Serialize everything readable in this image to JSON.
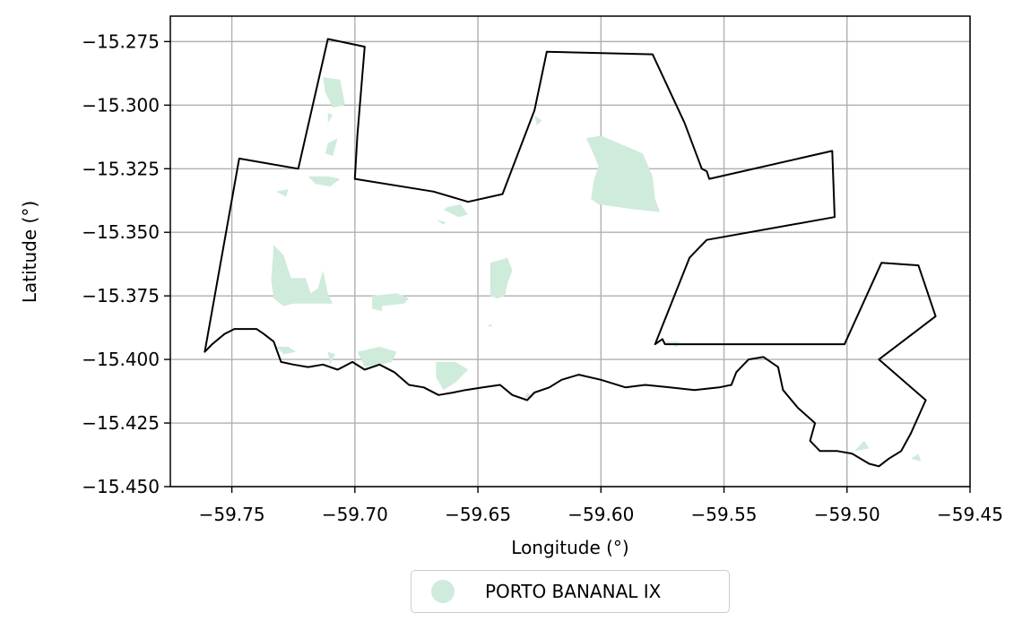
{
  "chart_data": {
    "type": "map",
    "xlabel": "Longitude (°)",
    "ylabel": "Latitude (°)",
    "xlim": [
      -59.775,
      -59.45
    ],
    "ylim": [
      -15.45,
      -15.265
    ],
    "x_ticks": [
      -59.75,
      -59.7,
      -59.65,
      -59.6,
      -59.55,
      -59.5,
      -59.45
    ],
    "x_tick_labels": [
      "−59.75",
      "−59.70",
      "−59.65",
      "−59.60",
      "−59.55",
      "−59.50",
      "−59.45"
    ],
    "y_ticks": [
      -15.275,
      -15.3,
      -15.325,
      -15.35,
      -15.375,
      -15.4,
      -15.425,
      -15.45
    ],
    "y_tick_labels": [
      "−15.275",
      "−15.300",
      "−15.325",
      "−15.350",
      "−15.375",
      "−15.400",
      "−15.425",
      "−15.450"
    ],
    "grid": true,
    "legend_placement": "bottom-center, below axes",
    "legend": [
      {
        "label": "PORTO BANANAL IX",
        "color": "#cfebdc",
        "marker": "circle"
      }
    ],
    "boundary": {
      "stroke": "#000000",
      "fill": "none",
      "points": [
        [
          -59.761,
          -15.397
        ],
        [
          -59.747,
          -15.321
        ],
        [
          -59.735,
          -15.323
        ],
        [
          -59.723,
          -15.325
        ],
        [
          -59.711,
          -15.274
        ],
        [
          -59.696,
          -15.277
        ],
        [
          -59.699,
          -15.312
        ],
        [
          -59.7,
          -15.329
        ],
        [
          -59.668,
          -15.334
        ],
        [
          -59.654,
          -15.338
        ],
        [
          -59.64,
          -15.335
        ],
        [
          -59.627,
          -15.302
        ],
        [
          -59.622,
          -15.279
        ],
        [
          -59.579,
          -15.28
        ],
        [
          -59.566,
          -15.307
        ],
        [
          -59.559,
          -15.325
        ],
        [
          -59.557,
          -15.326
        ],
        [
          -59.556,
          -15.329
        ],
        [
          -59.506,
          -15.318
        ],
        [
          -59.505,
          -15.344
        ],
        [
          -59.557,
          -15.353
        ],
        [
          -59.564,
          -15.36
        ],
        [
          -59.578,
          -15.394
        ],
        [
          -59.575,
          -15.392
        ],
        [
          -59.574,
          -15.394
        ],
        [
          -59.501,
          -15.394
        ],
        [
          -59.486,
          -15.362
        ],
        [
          -59.471,
          -15.363
        ],
        [
          -59.464,
          -15.383
        ],
        [
          -59.487,
          -15.4
        ],
        [
          -59.468,
          -15.416
        ],
        [
          -59.474,
          -15.429
        ],
        [
          -59.478,
          -15.436
        ],
        [
          -59.483,
          -15.439
        ],
        [
          -59.487,
          -15.442
        ],
        [
          -59.491,
          -15.441
        ],
        [
          -59.498,
          -15.437
        ],
        [
          -59.504,
          -15.436
        ],
        [
          -59.511,
          -15.436
        ],
        [
          -59.515,
          -15.432
        ],
        [
          -59.513,
          -15.425
        ],
        [
          -59.52,
          -15.419
        ],
        [
          -59.526,
          -15.412
        ],
        [
          -59.528,
          -15.403
        ],
        [
          -59.534,
          -15.399
        ],
        [
          -59.54,
          -15.4
        ],
        [
          -59.545,
          -15.405
        ],
        [
          -59.547,
          -15.41
        ],
        [
          -59.552,
          -15.411
        ],
        [
          -59.562,
          -15.412
        ],
        [
          -59.572,
          -15.411
        ],
        [
          -59.582,
          -15.41
        ],
        [
          -59.59,
          -15.411
        ],
        [
          -59.6,
          -15.408
        ],
        [
          -59.609,
          -15.406
        ],
        [
          -59.616,
          -15.408
        ],
        [
          -59.621,
          -15.411
        ],
        [
          -59.627,
          -15.413
        ],
        [
          -59.63,
          -15.416
        ],
        [
          -59.636,
          -15.414
        ],
        [
          -59.641,
          -15.41
        ],
        [
          -59.648,
          -15.411
        ],
        [
          -59.655,
          -15.412
        ],
        [
          -59.66,
          -15.413
        ],
        [
          -59.666,
          -15.414
        ],
        [
          -59.672,
          -15.411
        ],
        [
          -59.678,
          -15.41
        ],
        [
          -59.684,
          -15.405
        ],
        [
          -59.69,
          -15.402
        ],
        [
          -59.696,
          -15.404
        ],
        [
          -59.701,
          -15.401
        ],
        [
          -59.707,
          -15.404
        ],
        [
          -59.713,
          -15.402
        ],
        [
          -59.719,
          -15.403
        ],
        [
          -59.725,
          -15.402
        ],
        [
          -59.73,
          -15.401
        ],
        [
          -59.733,
          -15.393
        ],
        [
          -59.737,
          -15.39
        ],
        [
          -59.74,
          -15.388
        ],
        [
          -59.744,
          -15.388
        ],
        [
          -59.749,
          -15.388
        ],
        [
          -59.753,
          -15.39
        ],
        [
          -59.758,
          -15.394
        ],
        [
          -59.761,
          -15.397
        ]
      ]
    },
    "areas": [
      {
        "name": "PORTO BANANAL IX",
        "fill": "#cfebdc",
        "polygons": [
          [
            [
              -59.713,
              -15.289
            ],
            [
              -59.706,
              -15.29
            ],
            [
              -59.704,
              -15.3
            ],
            [
              -59.709,
              -15.301
            ],
            [
              -59.712,
              -15.295
            ]
          ],
          [
            [
              -59.711,
              -15.303
            ],
            [
              -59.709,
              -15.304
            ],
            [
              -59.711,
              -15.307
            ]
          ],
          [
            [
              -59.711,
              -15.315
            ],
            [
              -59.707,
              -15.313
            ],
            [
              -59.709,
              -15.32
            ],
            [
              -59.712,
              -15.319
            ]
          ],
          [
            [
              -59.719,
              -15.328
            ],
            [
              -59.711,
              -15.328
            ],
            [
              -59.706,
              -15.329
            ],
            [
              -59.71,
              -15.332
            ],
            [
              -59.716,
              -15.331
            ]
          ],
          [
            [
              -59.732,
              -15.334
            ],
            [
              -59.727,
              -15.333
            ],
            [
              -59.728,
              -15.336
            ]
          ],
          [
            [
              -59.733,
              -15.355
            ],
            [
              -59.729,
              -15.359
            ],
            [
              -59.726,
              -15.368
            ],
            [
              -59.72,
              -15.368
            ],
            [
              -59.718,
              -15.374
            ],
            [
              -59.715,
              -15.372
            ],
            [
              -59.713,
              -15.365
            ],
            [
              -59.711,
              -15.374
            ],
            [
              -59.709,
              -15.378
            ],
            [
              -59.715,
              -15.378
            ],
            [
              -59.72,
              -15.378
            ],
            [
              -59.725,
              -15.378
            ],
            [
              -59.729,
              -15.379
            ],
            [
              -59.733,
              -15.376
            ],
            [
              -59.734,
              -15.369
            ]
          ],
          [
            [
              -59.693,
              -15.375
            ],
            [
              -59.683,
              -15.374
            ],
            [
              -59.678,
              -15.376
            ],
            [
              -59.68,
              -15.378
            ],
            [
              -59.689,
              -15.379
            ],
            [
              -59.689,
              -15.381
            ],
            [
              -59.693,
              -15.38
            ]
          ],
          [
            [
              -59.638,
              -15.36
            ],
            [
              -59.645,
              -15.362
            ],
            [
              -59.645,
              -15.37
            ],
            [
              -59.645,
              -15.375
            ],
            [
              -59.642,
              -15.376
            ],
            [
              -59.639,
              -15.375
            ],
            [
              -59.638,
              -15.37
            ],
            [
              -59.636,
              -15.365
            ]
          ],
          [
            [
              -59.645,
              -15.386
            ],
            [
              -59.644,
              -15.387
            ],
            [
              -59.646,
              -15.387
            ]
          ],
          [
            [
              -59.662,
              -15.34
            ],
            [
              -59.657,
              -15.339
            ],
            [
              -59.654,
              -15.343
            ],
            [
              -59.658,
              -15.344
            ],
            [
              -59.664,
              -15.341
            ]
          ],
          [
            [
              -59.663,
              -15.346
            ],
            [
              -59.667,
              -15.345
            ],
            [
              -59.664,
              -15.347
            ]
          ],
          [
            [
              -59.627,
              -15.304
            ],
            [
              -59.624,
              -15.306
            ],
            [
              -59.626,
              -15.308
            ]
          ],
          [
            [
              -59.583,
              -15.319
            ],
            [
              -59.579,
              -15.328
            ],
            [
              -59.578,
              -15.337
            ],
            [
              -59.576,
              -15.342
            ],
            [
              -59.586,
              -15.341
            ],
            [
              -59.601,
              -15.339
            ],
            [
              -59.604,
              -15.337
            ],
            [
              -59.603,
              -15.33
            ],
            [
              -59.601,
              -15.324
            ],
            [
              -59.604,
              -15.317
            ],
            [
              -59.606,
              -15.313
            ],
            [
              -59.6,
              -15.312
            ]
          ],
          [
            [
              -59.732,
              -15.395
            ],
            [
              -59.727,
              -15.395
            ],
            [
              -59.724,
              -15.397
            ],
            [
              -59.729,
              -15.398
            ]
          ],
          [
            [
              -59.711,
              -15.397
            ],
            [
              -59.708,
              -15.398
            ],
            [
              -59.71,
              -15.402
            ]
          ],
          [
            [
              -59.699,
              -15.397
            ],
            [
              -59.69,
              -15.395
            ],
            [
              -59.683,
              -15.397
            ],
            [
              -59.685,
              -15.401
            ],
            [
              -59.69,
              -15.402
            ],
            [
              -59.696,
              -15.403
            ]
          ],
          [
            [
              -59.667,
              -15.401
            ],
            [
              -59.659,
              -15.401
            ],
            [
              -59.654,
              -15.404
            ],
            [
              -59.659,
              -15.409
            ],
            [
              -59.664,
              -15.412
            ],
            [
              -59.667,
              -15.407
            ]
          ],
          [
            [
              -59.63,
              -15.413
            ],
            [
              -59.627,
              -15.415
            ],
            [
              -59.631,
              -15.415
            ]
          ],
          [
            [
              -59.497,
              -15.436
            ],
            [
              -59.493,
              -15.432
            ],
            [
              -59.491,
              -15.435
            ]
          ],
          [
            [
              -59.474,
              -15.439
            ],
            [
              -59.471,
              -15.437
            ],
            [
              -59.47,
              -15.44
            ]
          ],
          [
            [
              -59.575,
              -15.393
            ],
            [
              -59.568,
              -15.393
            ],
            [
              -59.569,
              -15.395
            ]
          ]
        ]
      }
    ]
  }
}
